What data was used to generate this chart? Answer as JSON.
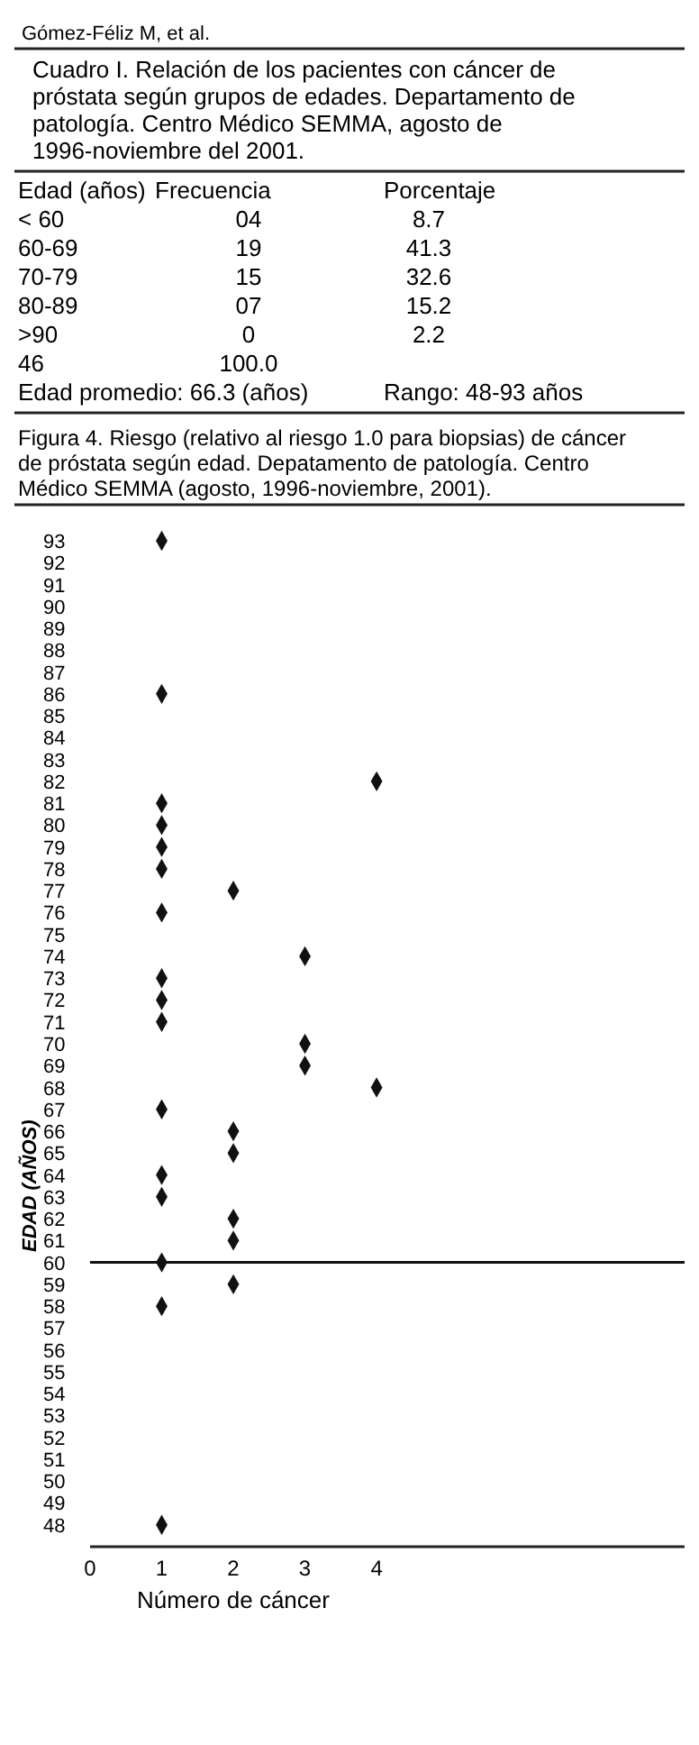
{
  "chart_data": {
    "type": "scatter",
    "title": "Figura 4.  Riesgo (relativo al riesgo 1.0 para biopsias) de cáncer de próstata según edad. Depatamento de patología. Centro Médico SEMMA (agosto, 1996-noviembre, 2001).",
    "xlabel": "Número de cáncer",
    "ylabel": "EDAD (AÑOS)",
    "annotations": [
      "Gómez-Féliz M, et al.",
      "Cuadro I. Relación de los pacientes con cáncer de próstata según grupos de edades. Departamento de patología. Centro Médico SEMMA, agosto de 1996-noviembre del 2001.",
      "Edad (años)\tFrecuencia\tPorcentaje",
      "< 60\t04\t8.7",
      "60-69\t19\t41.3",
      "70-79\t15\t32.6",
      "80-89\t07\t15.2",
      ">90\t0\t2.2",
      "46\t100.0\t",
      "Edad promedio: 66.3 (años)\tRango: 48-93 años"
    ],
    "series": [
      {
        "color": "#111111",
        "x": [
          1,
          1,
          4,
          1,
          1,
          1,
          1,
          2,
          1,
          3,
          1,
          1,
          1,
          3,
          3,
          4,
          1,
          2,
          2,
          1,
          1,
          2,
          2,
          1,
          2,
          1,
          1
        ],
        "values": [
          93,
          86,
          82,
          81,
          80,
          79,
          78,
          77,
          76,
          74,
          73,
          72,
          71,
          70,
          69,
          68,
          67,
          66,
          65,
          64,
          63,
          62,
          61,
          60,
          59,
          58,
          48
        ]
      }
    ],
    "marker": "diamond",
    "xlim": [
      0,
      8.3
    ],
    "xticks": [
      0,
      1,
      2,
      3,
      4
    ],
    "ylim": [
      47,
      93
    ],
    "yticks": [
      48,
      49,
      50,
      51,
      52,
      53,
      54,
      55,
      56,
      57,
      58,
      59,
      60,
      61,
      62,
      63,
      64,
      65,
      66,
      67,
      68,
      69,
      70,
      71,
      72,
      73,
      74,
      75,
      76,
      77,
      78,
      79,
      80,
      81,
      82,
      83,
      84,
      85,
      86,
      87,
      88,
      89,
      90,
      91,
      92,
      93
    ],
    "ref_lines": [
      {
        "axis": "y",
        "value": 60,
        "color": "#111111"
      }
    ],
    "grid": false
  }
}
